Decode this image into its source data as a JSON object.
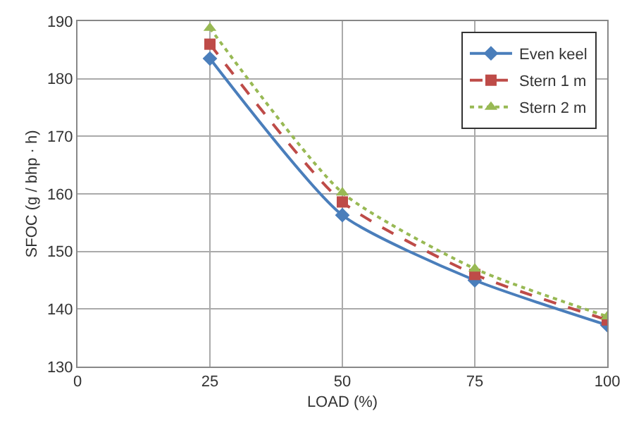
{
  "chart_data": {
    "type": "line",
    "xlabel": "LOAD (%)",
    "ylabel": "SFOC (g / bhp · h)",
    "x": [
      25,
      50,
      75,
      100
    ],
    "series": [
      {
        "name": "Even keel",
        "color": "#4a7ebb",
        "values": [
          183.5,
          156.3,
          145,
          137.2
        ],
        "marker": "diamond",
        "line_style": "solid"
      },
      {
        "name": "Stern 1 m",
        "color": "#be4b48",
        "values": [
          186,
          158.6,
          146,
          138.1
        ],
        "marker": "square",
        "line_style": "dashed"
      },
      {
        "name": "Stern 2 m",
        "color": "#98b954",
        "values": [
          188.8,
          160.2,
          147,
          138.7
        ],
        "marker": "triangle",
        "line_style": "dotted"
      }
    ],
    "xlim": [
      0,
      100
    ],
    "xticks": [
      0,
      25,
      50,
      75,
      100
    ],
    "ylim": [
      130,
      190
    ],
    "yticks": [
      130,
      140,
      150,
      160,
      170,
      180,
      190
    ],
    "grid": true,
    "legend": "top right"
  }
}
